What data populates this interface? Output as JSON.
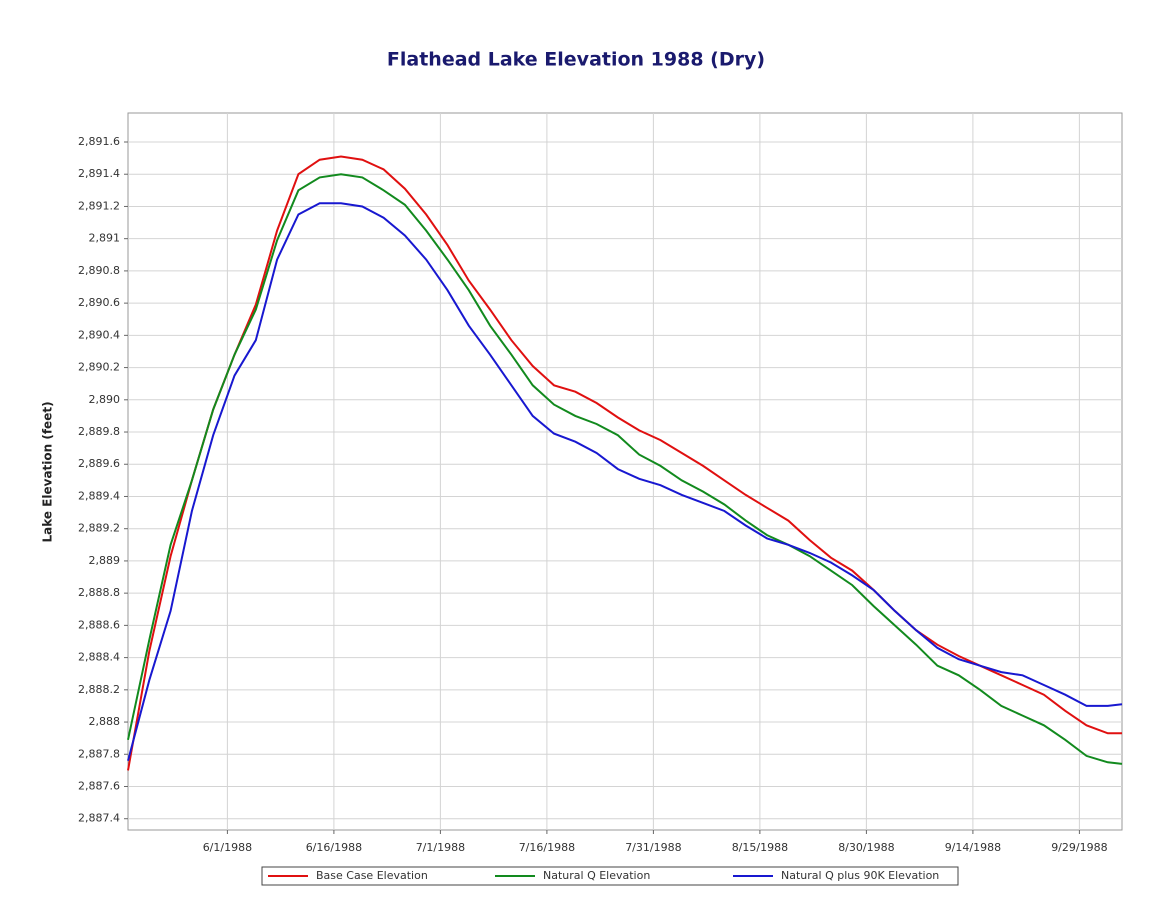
{
  "chart_data": {
    "type": "line",
    "title": "Flathead Lake Elevation 1988 (Dry)",
    "y_label": "Lake Elevation (feet)",
    "x": [
      "5/18/1988",
      "5/21/1988",
      "5/24/1988",
      "5/27/1988",
      "5/30/1988",
      "6/2/1988",
      "6/5/1988",
      "6/8/1988",
      "6/11/1988",
      "6/14/1988",
      "6/17/1988",
      "6/20/1988",
      "6/23/1988",
      "6/26/1988",
      "6/29/1988",
      "7/2/1988",
      "7/5/1988",
      "7/8/1988",
      "7/11/1988",
      "7/14/1988",
      "7/17/1988",
      "7/20/1988",
      "7/23/1988",
      "7/26/1988",
      "7/29/1988",
      "8/1/1988",
      "8/4/1988",
      "8/7/1988",
      "8/10/1988",
      "8/13/1988",
      "8/16/1988",
      "8/19/1988",
      "8/22/1988",
      "8/25/1988",
      "8/28/1988",
      "8/31/1988",
      "9/3/1988",
      "9/6/1988",
      "9/9/1988",
      "9/12/1988",
      "9/15/1988",
      "9/18/1988",
      "9/21/1988",
      "9/24/1988",
      "9/27/1988",
      "9/30/1988",
      "10/3/1988",
      "10/5/1988"
    ],
    "series": [
      {
        "name": "Base Case Elevation",
        "color": "#e01010",
        "values": [
          2887.7,
          2888.44,
          2889.03,
          2889.5,
          2889.94,
          2890.28,
          2890.59,
          2891.05,
          2891.4,
          2891.49,
          2891.51,
          2891.49,
          2891.43,
          2891.31,
          2891.15,
          2890.96,
          2890.74,
          2890.56,
          2890.37,
          2890.21,
          2890.09,
          2890.05,
          2889.98,
          2889.89,
          2889.81,
          2889.75,
          2889.67,
          2889.59,
          2889.5,
          2889.41,
          2889.33,
          2889.25,
          2889.13,
          2889.02,
          2888.94,
          2888.82,
          2888.69,
          2888.57,
          2888.48,
          2888.41,
          2888.35,
          2888.29,
          2888.23,
          2888.17,
          2888.07,
          2887.98,
          2887.93,
          2887.93
        ]
      },
      {
        "name": "Natural Q Elevation",
        "color": "#128a1e",
        "values": [
          2887.89,
          2888.51,
          2889.1,
          2889.5,
          2889.94,
          2890.28,
          2890.56,
          2890.99,
          2891.3,
          2891.38,
          2891.4,
          2891.38,
          2891.3,
          2891.21,
          2891.05,
          2890.87,
          2890.68,
          2890.46,
          2890.28,
          2890.09,
          2889.97,
          2889.9,
          2889.85,
          2889.78,
          2889.66,
          2889.59,
          2889.5,
          2889.43,
          2889.35,
          2889.25,
          2889.16,
          2889.1,
          2889.03,
          2888.94,
          2888.85,
          2888.72,
          2888.6,
          2888.48,
          2888.35,
          2888.29,
          2888.2,
          2888.1,
          2888.04,
          2887.98,
          2887.89,
          2887.79,
          2887.75,
          2887.74
        ]
      },
      {
        "name": "Natural Q plus 90K Elevation",
        "color": "#1818d0",
        "values": [
          2887.76,
          2888.26,
          2888.69,
          2889.31,
          2889.78,
          2890.15,
          2890.37,
          2890.87,
          2891.15,
          2891.22,
          2891.22,
          2891.2,
          2891.13,
          2891.02,
          2890.87,
          2890.68,
          2890.46,
          2890.28,
          2890.09,
          2889.9,
          2889.79,
          2889.74,
          2889.67,
          2889.57,
          2889.51,
          2889.47,
          2889.41,
          2889.36,
          2889.31,
          2889.22,
          2889.14,
          2889.1,
          2889.05,
          2888.99,
          2888.91,
          2888.82,
          2888.69,
          2888.57,
          2888.46,
          2888.39,
          2888.35,
          2888.31,
          2888.29,
          2888.23,
          2888.17,
          2888.1,
          2888.1,
          2888.11
        ]
      }
    ],
    "xlim": [
      "5/18/1988",
      "10/5/1988"
    ],
    "xticks": [
      "6/1/1988",
      "6/16/1988",
      "7/1/1988",
      "7/16/1988",
      "7/31/1988",
      "8/15/1988",
      "8/30/1988",
      "9/14/1988",
      "9/29/1988"
    ],
    "ylim": [
      2887.33,
      2891.78
    ],
    "yticks": [
      {
        "value": 2887.4,
        "label": "2,887.4"
      },
      {
        "value": 2887.6,
        "label": "2,887.6"
      },
      {
        "value": 2887.8,
        "label": "2,887.8"
      },
      {
        "value": 2888,
        "label": "2,888"
      },
      {
        "value": 2888.2,
        "label": "2,888.2"
      },
      {
        "value": 2888.4,
        "label": "2,888.4"
      },
      {
        "value": 2888.6,
        "label": "2,888.6"
      },
      {
        "value": 2888.8,
        "label": "2,888.8"
      },
      {
        "value": 2889,
        "label": "2,889"
      },
      {
        "value": 2889.2,
        "label": "2,889.2"
      },
      {
        "value": 2889.4,
        "label": "2,889.4"
      },
      {
        "value": 2889.6,
        "label": "2,889.6"
      },
      {
        "value": 2889.8,
        "label": "2,889.8"
      },
      {
        "value": 2890,
        "label": "2,890"
      },
      {
        "value": 2890.2,
        "label": "2,890.2"
      },
      {
        "value": 2890.4,
        "label": "2,890.4"
      },
      {
        "value": 2890.6,
        "label": "2,890.6"
      },
      {
        "value": 2890.8,
        "label": "2,890.8"
      },
      {
        "value": 2891,
        "label": "2,891"
      },
      {
        "value": 2891.2,
        "label": "2,891.2"
      },
      {
        "value": 2891.4,
        "label": "2,891.4"
      },
      {
        "value": 2891.6,
        "label": "2,891.6"
      }
    ],
    "grid": true,
    "legend": "bottom"
  }
}
